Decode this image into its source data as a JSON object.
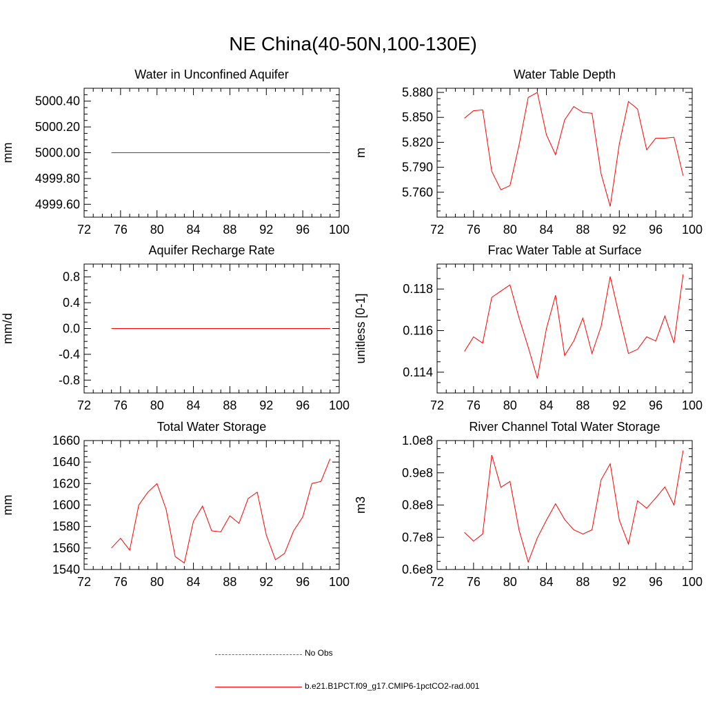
{
  "figure": {
    "title": "NE China(40-50N,100-130E)"
  },
  "colors": {
    "model": "#ff0000",
    "obs": "#5b5bd0",
    "axis": "#000000"
  },
  "legend": {
    "obs_label": "No Obs",
    "model_label": "b.e21.B1PCT.f09_g17.CMIP6-1pctCO2-rad.001"
  },
  "chart_data": [
    {
      "type": "line",
      "title": "Water in Unconfined Aquifer",
      "ylabel": "mm",
      "xlim": [
        72,
        100
      ],
      "ylim": [
        4999.5,
        5000.5
      ],
      "xticks": [
        72,
        76,
        80,
        84,
        88,
        92,
        96,
        100
      ],
      "yticks": [
        4999.6,
        4999.8,
        5000.0,
        5000.2,
        5000.4
      ],
      "ytick_labels": [
        "4999.60",
        "4999.80",
        "5000.00",
        "5000.20",
        "5000.40"
      ],
      "x": [
        75,
        76,
        77,
        78,
        79,
        80,
        81,
        82,
        83,
        84,
        85,
        86,
        87,
        88,
        89,
        90,
        91,
        92,
        93,
        94,
        95,
        96,
        97,
        98,
        99
      ],
      "series": [
        {
          "name": "b.e21.B1PCT.f09_g17.CMIP6-1pctCO2-rad.001",
          "values": [
            5000,
            5000,
            5000,
            5000,
            5000,
            5000,
            5000,
            5000,
            5000,
            5000,
            5000,
            5000,
            5000,
            5000,
            5000,
            5000,
            5000,
            5000,
            5000,
            5000,
            5000,
            5000,
            5000,
            5000,
            5000
          ]
        }
      ]
    },
    {
      "type": "line",
      "title": "Water Table Depth",
      "ylabel": "m",
      "xlim": [
        72,
        100
      ],
      "ylim": [
        5.73,
        5.885
      ],
      "xticks": [
        72,
        76,
        80,
        84,
        88,
        92,
        96,
        100
      ],
      "yticks": [
        5.76,
        5.79,
        5.82,
        5.85,
        5.88
      ],
      "ytick_labels": [
        "5.760",
        "5.790",
        "5.820",
        "5.850",
        "5.880"
      ],
      "x": [
        75,
        76,
        77,
        78,
        79,
        80,
        81,
        82,
        83,
        84,
        85,
        86,
        87,
        88,
        89,
        90,
        91,
        92,
        93,
        94,
        95,
        96,
        97,
        98,
        99
      ],
      "series": [
        {
          "name": "b.e21.B1PCT.f09_g17.CMIP6-1pctCO2-rad.001",
          "values": [
            5.849,
            5.858,
            5.859,
            5.785,
            5.763,
            5.768,
            5.817,
            5.874,
            5.88,
            5.829,
            5.805,
            5.847,
            5.863,
            5.856,
            5.855,
            5.782,
            5.743,
            5.818,
            5.869,
            5.86,
            5.811,
            5.825,
            5.825,
            5.826,
            5.78
          ]
        }
      ]
    },
    {
      "type": "line",
      "title": "Aquifer Recharge Rate",
      "ylabel": "mm/d",
      "xlim": [
        72,
        100
      ],
      "ylim": [
        -1.0,
        1.0
      ],
      "xticks": [
        72,
        76,
        80,
        84,
        88,
        92,
        96,
        100
      ],
      "yticks": [
        -0.8,
        -0.4,
        0.0,
        0.4,
        0.8
      ],
      "ytick_labels": [
        "-0.8",
        "-0.4",
        "0.0",
        "0.4",
        "0.8"
      ],
      "x": [
        75,
        76,
        77,
        78,
        79,
        80,
        81,
        82,
        83,
        84,
        85,
        86,
        87,
        88,
        89,
        90,
        91,
        92,
        93,
        94,
        95,
        96,
        97,
        98,
        99
      ],
      "series": [
        {
          "name": "b.e21.B1PCT.f09_g17.CMIP6-1pctCO2-rad.001",
          "values": [
            0,
            0,
            0,
            0,
            0,
            0,
            0,
            0,
            0,
            0,
            0,
            0,
            0,
            0,
            0,
            0,
            0,
            0,
            0,
            0,
            0,
            0,
            0,
            0,
            0
          ]
        }
      ]
    },
    {
      "type": "line",
      "title": "Frac Water Table at Surface",
      "ylabel": "unitless [0-1]",
      "xlim": [
        72,
        100
      ],
      "ylim": [
        0.113,
        0.1192
      ],
      "xticks": [
        72,
        76,
        80,
        84,
        88,
        92,
        96,
        100
      ],
      "yticks": [
        0.114,
        0.116,
        0.118
      ],
      "ytick_labels": [
        "0.114",
        "0.116",
        "0.118"
      ],
      "x": [
        75,
        76,
        77,
        78,
        79,
        80,
        81,
        82,
        83,
        84,
        85,
        86,
        87,
        88,
        89,
        90,
        91,
        92,
        93,
        94,
        95,
        96,
        97,
        98,
        99
      ],
      "series": [
        {
          "name": "b.e21.B1PCT.f09_g17.CMIP6-1pctCO2-rad.001",
          "values": [
            0.115,
            0.1157,
            0.1154,
            0.1176,
            0.1179,
            0.1182,
            0.1166,
            0.1152,
            0.1137,
            0.1161,
            0.1177,
            0.1148,
            0.1155,
            0.1166,
            0.1149,
            0.1162,
            0.1186,
            0.1167,
            0.1149,
            0.1151,
            0.1157,
            0.1155,
            0.1167,
            0.1154,
            0.1187
          ]
        }
      ]
    },
    {
      "type": "line",
      "title": "Total Water Storage",
      "ylabel": "mm",
      "xlim": [
        72,
        100
      ],
      "ylim": [
        1540,
        1660
      ],
      "xticks": [
        72,
        76,
        80,
        84,
        88,
        92,
        96,
        100
      ],
      "yticks": [
        1540,
        1560,
        1580,
        1600,
        1620,
        1640,
        1660
      ],
      "ytick_labels": [
        "1540",
        "1560",
        "1580",
        "1600",
        "1620",
        "1640",
        "1660"
      ],
      "x": [
        75,
        76,
        77,
        78,
        79,
        80,
        81,
        82,
        83,
        84,
        85,
        86,
        87,
        88,
        89,
        90,
        91,
        92,
        93,
        94,
        95,
        96,
        97,
        98,
        99
      ],
      "series": [
        {
          "name": "b.e21.B1PCT.f09_g17.CMIP6-1pctCO2-rad.001",
          "values": [
            1560,
            1569,
            1558,
            1600,
            1612,
            1620,
            1596,
            1552,
            1546,
            1585,
            1599,
            1576,
            1575,
            1590,
            1583,
            1606,
            1612,
            1572,
            1549,
            1555,
            1576,
            1589,
            1620,
            1622,
            1643
          ]
        }
      ]
    },
    {
      "type": "line",
      "title": "River Channel Total Water Storage",
      "ylabel": "m3",
      "xlim": [
        72,
        100
      ],
      "ylim": [
        60000000,
        100000000
      ],
      "xticks": [
        72,
        76,
        80,
        84,
        88,
        92,
        96,
        100
      ],
      "yticks": [
        60000000,
        70000000,
        80000000,
        90000000,
        100000000
      ],
      "ytick_labels": [
        "0.6e8",
        "0.7e8",
        "0.8e8",
        "0.9e8",
        "1.0e8"
      ],
      "x": [
        75,
        76,
        77,
        78,
        79,
        80,
        81,
        82,
        83,
        84,
        85,
        86,
        87,
        88,
        89,
        90,
        91,
        92,
        93,
        94,
        95,
        96,
        97,
        98,
        99
      ],
      "series": [
        {
          "name": "b.e21.B1PCT.f09_g17.CMIP6-1pctCO2-rad.001",
          "values": [
            71500000,
            68800000,
            71000000,
            95500000,
            85500000,
            87300000,
            72200000,
            62300000,
            69800000,
            75300000,
            80400000,
            75500000,
            72300000,
            71000000,
            72300000,
            87800000,
            92800000,
            75300000,
            67900000,
            81300000,
            79000000,
            82200000,
            85600000,
            80000000,
            96900000
          ]
        }
      ]
    }
  ]
}
